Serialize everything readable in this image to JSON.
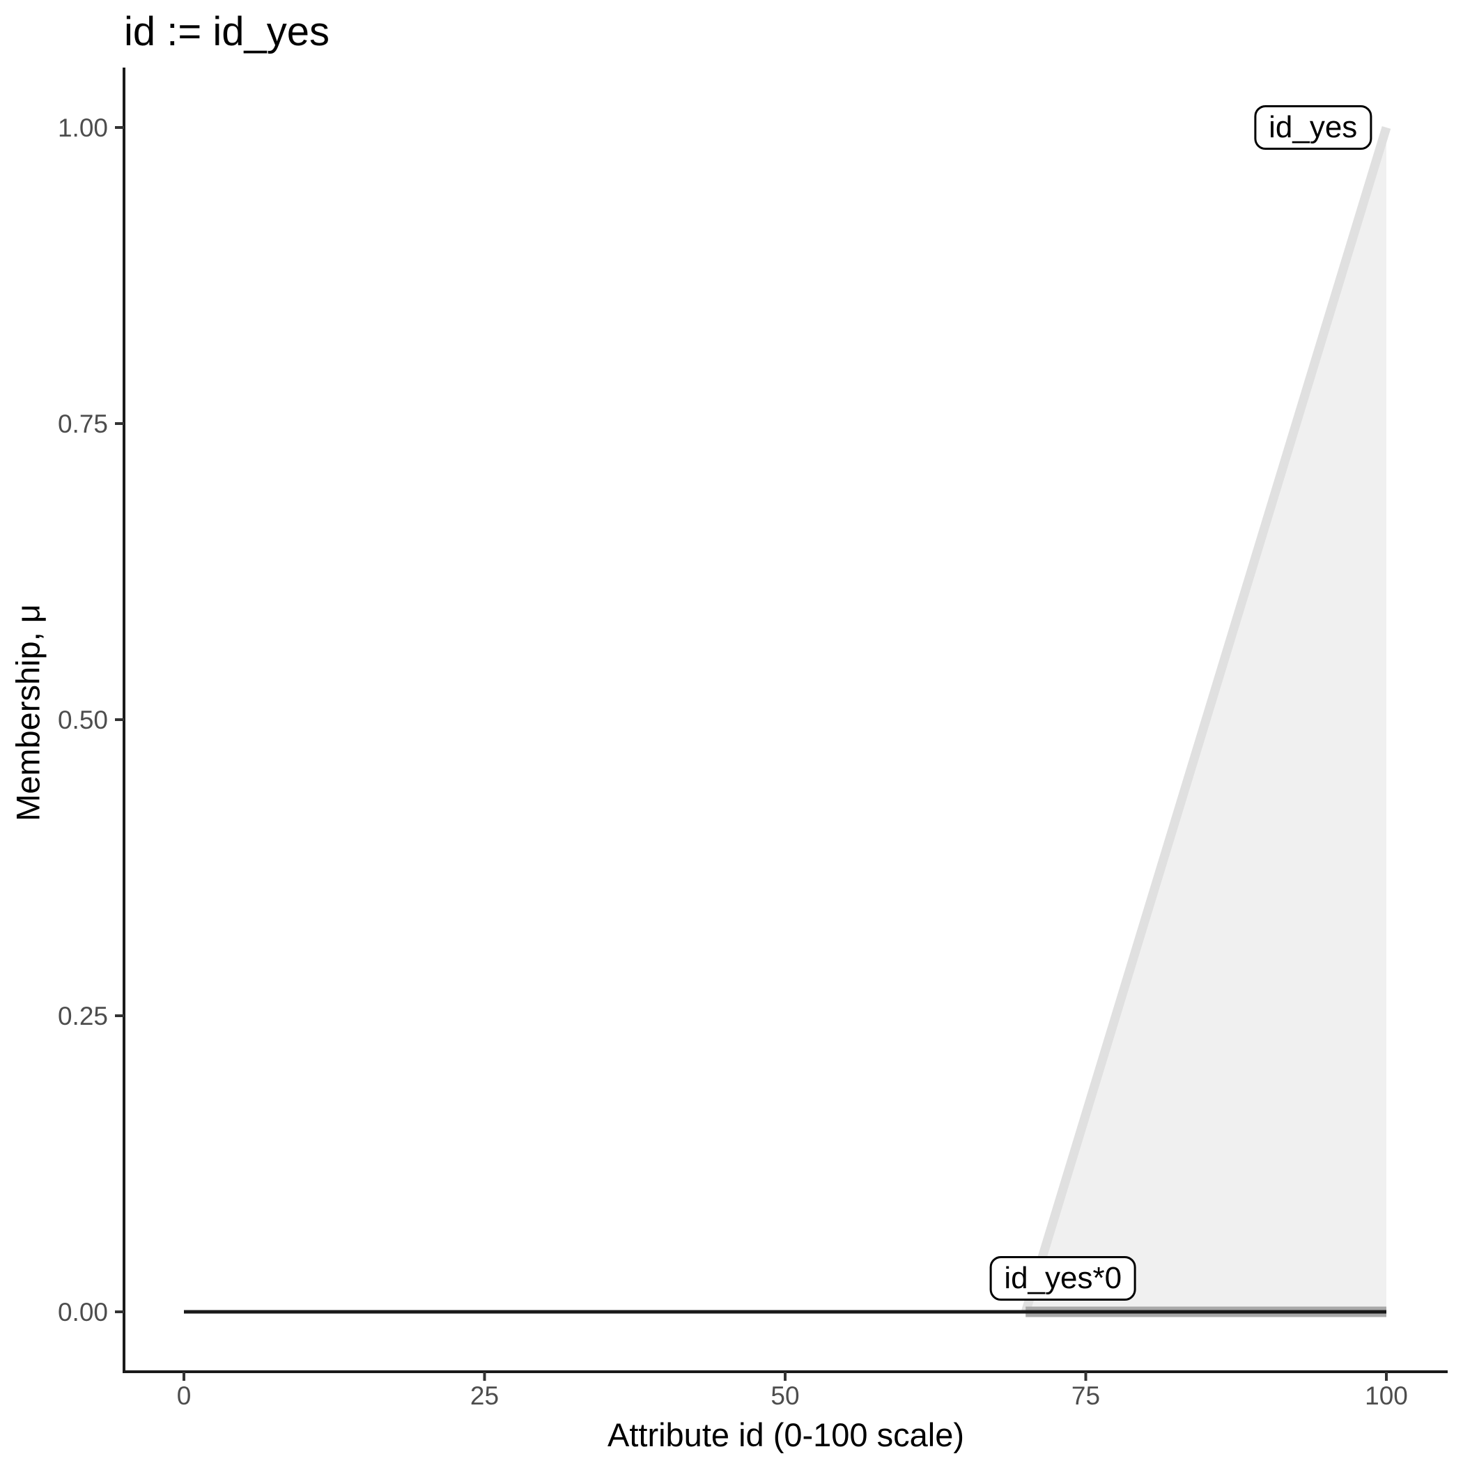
{
  "chart": {
    "title": "id := id_yes",
    "xlabel": "Attribute id (0-100 scale)",
    "ylabel": "Membership, μ"
  },
  "chart_data": {
    "type": "area",
    "title": "id := id_yes",
    "xlabel": "Attribute id (0-100 scale)",
    "ylabel": "Membership, μ",
    "xlim": [
      0,
      100
    ],
    "ylim": [
      0,
      1
    ],
    "x_tick_values": [
      0,
      25,
      50,
      75,
      100
    ],
    "x_tick_labels": [
      "0",
      "25",
      "50",
      "75",
      "100"
    ],
    "y_tick_values": [
      0,
      0.25,
      0.5,
      0.75,
      1
    ],
    "y_tick_labels": [
      "0.00",
      "0.25",
      "0.50",
      "0.75",
      "1.00"
    ],
    "grid": false,
    "legend_position": "none",
    "series": [
      {
        "name": "id_yes",
        "kind": "area",
        "points": [
          [
            70,
            0
          ],
          [
            100,
            1
          ],
          [
            100,
            0
          ]
        ],
        "fill_color": "#f0f0f0"
      },
      {
        "name": "id_yes",
        "kind": "line",
        "points": [
          [
            70,
            0
          ],
          [
            100,
            1
          ]
        ],
        "color": "#e0e0e0",
        "width": 13
      },
      {
        "name": "id_yes*0",
        "kind": "line",
        "points": [
          [
            70,
            0
          ],
          [
            100,
            0
          ]
        ],
        "color": "#a9a9a9",
        "width": 15
      },
      {
        "name": "id_yes*0",
        "kind": "line",
        "points": [
          [
            0,
            0
          ],
          [
            100,
            0
          ]
        ],
        "color": "#1a1a1a",
        "width": 5
      }
    ],
    "annotations": [
      {
        "label": "id_yes",
        "x": 93.9,
        "y": 1.0
      },
      {
        "label": "id_yes*0",
        "x": 73.1,
        "y": 0.028
      }
    ]
  },
  "colors": {
    "background": "#ffffff",
    "axis_line": "#1a1a1a",
    "tick_mark": "#333333",
    "tick_label": "#4d4d4d",
    "membership_line": "#e0e0e0",
    "membership_fill": "#f0f0f0",
    "scaled_line": "#a9a9a9",
    "zero_line": "#1a1a1a"
  }
}
